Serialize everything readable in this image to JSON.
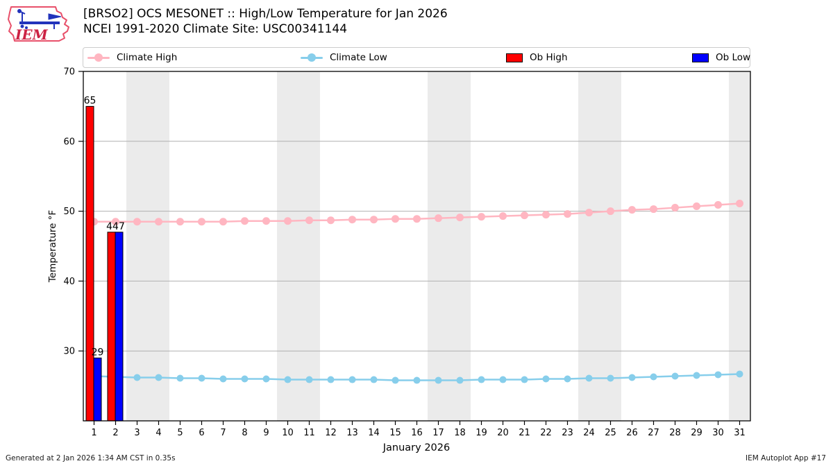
{
  "header": {
    "logo_text": "IEM",
    "title_line1": "[BRSO2] OCS MESONET :: High/Low Temperature for Jan 2026",
    "title_line2": "NCEI 1991-2020 Climate Site: USC00341144"
  },
  "legend": {
    "items": [
      {
        "label": "Climate High",
        "type": "line-marker",
        "color": "#ffb6c1"
      },
      {
        "label": "Climate Low",
        "type": "line-marker",
        "color": "#87ceeb"
      },
      {
        "label": "Ob High",
        "type": "rect",
        "color": "#ff0000"
      },
      {
        "label": "Ob Low",
        "type": "rect",
        "color": "#0000ff"
      }
    ]
  },
  "chart_data": {
    "type": "line+bar",
    "title": "[BRSO2] OCS MESONET :: High/Low Temperature for Jan 2026",
    "subtitle": "NCEI 1991-2020 Climate Site: USC00341144",
    "xlabel": "January 2026",
    "ylabel": "Temperature °F",
    "x": [
      1,
      2,
      3,
      4,
      5,
      6,
      7,
      8,
      9,
      10,
      11,
      12,
      13,
      14,
      15,
      16,
      17,
      18,
      19,
      20,
      21,
      22,
      23,
      24,
      25,
      26,
      27,
      28,
      29,
      30,
      31
    ],
    "ylim": [
      20,
      70
    ],
    "yticks": [
      30,
      40,
      50,
      60,
      70
    ],
    "grid": "horizontal",
    "weekend_shaded_days": [
      3,
      4,
      10,
      11,
      17,
      18,
      24,
      25,
      31
    ],
    "shade_color": "#ebebeb",
    "grid_color": "#b0b0b0",
    "series": [
      {
        "name": "Climate High",
        "type": "line",
        "color": "#ffb6c1",
        "marker_r": 5.5,
        "values": [
          48.5,
          48.5,
          48.5,
          48.5,
          48.5,
          48.5,
          48.5,
          48.6,
          48.6,
          48.6,
          48.7,
          48.7,
          48.8,
          48.8,
          48.9,
          48.9,
          49.0,
          49.1,
          49.2,
          49.3,
          49.4,
          49.5,
          49.6,
          49.8,
          50.0,
          50.2,
          50.3,
          50.5,
          50.7,
          50.9,
          51.1
        ]
      },
      {
        "name": "Climate Low",
        "type": "line",
        "color": "#87ceeb",
        "marker_r": 5,
        "values": [
          26.4,
          26.3,
          26.2,
          26.2,
          26.1,
          26.1,
          26.0,
          26.0,
          26.0,
          25.9,
          25.9,
          25.9,
          25.9,
          25.9,
          25.8,
          25.8,
          25.8,
          25.8,
          25.9,
          25.9,
          25.9,
          26.0,
          26.0,
          26.1,
          26.1,
          26.2,
          26.3,
          26.4,
          26.5,
          26.6,
          26.7
        ]
      },
      {
        "name": "Ob High",
        "type": "bar",
        "color": "#ff0000",
        "values": [
          65,
          47,
          null,
          null,
          null,
          null,
          null,
          null,
          null,
          null,
          null,
          null,
          null,
          null,
          null,
          null,
          null,
          null,
          null,
          null,
          null,
          null,
          null,
          null,
          null,
          null,
          null,
          null,
          null,
          null,
          null
        ]
      },
      {
        "name": "Ob Low",
        "type": "bar",
        "color": "#0000ff",
        "values": [
          29,
          47,
          null,
          null,
          null,
          null,
          null,
          null,
          null,
          null,
          null,
          null,
          null,
          null,
          null,
          null,
          null,
          null,
          null,
          null,
          null,
          null,
          null,
          null,
          null,
          null,
          null,
          null,
          null,
          null,
          null
        ]
      }
    ],
    "bar_labels": [
      {
        "day": 1,
        "text": "65",
        "value": 65,
        "align": "high"
      },
      {
        "day": 2,
        "text": "447",
        "value": 47,
        "align": "pair"
      },
      {
        "day": 1,
        "text": "29",
        "value": 29,
        "align": "low"
      }
    ]
  },
  "footer": {
    "left": "Generated at 2 Jan 2026 1:34 AM CST in 0.35s",
    "right": "IEM Autoplot App #17"
  }
}
